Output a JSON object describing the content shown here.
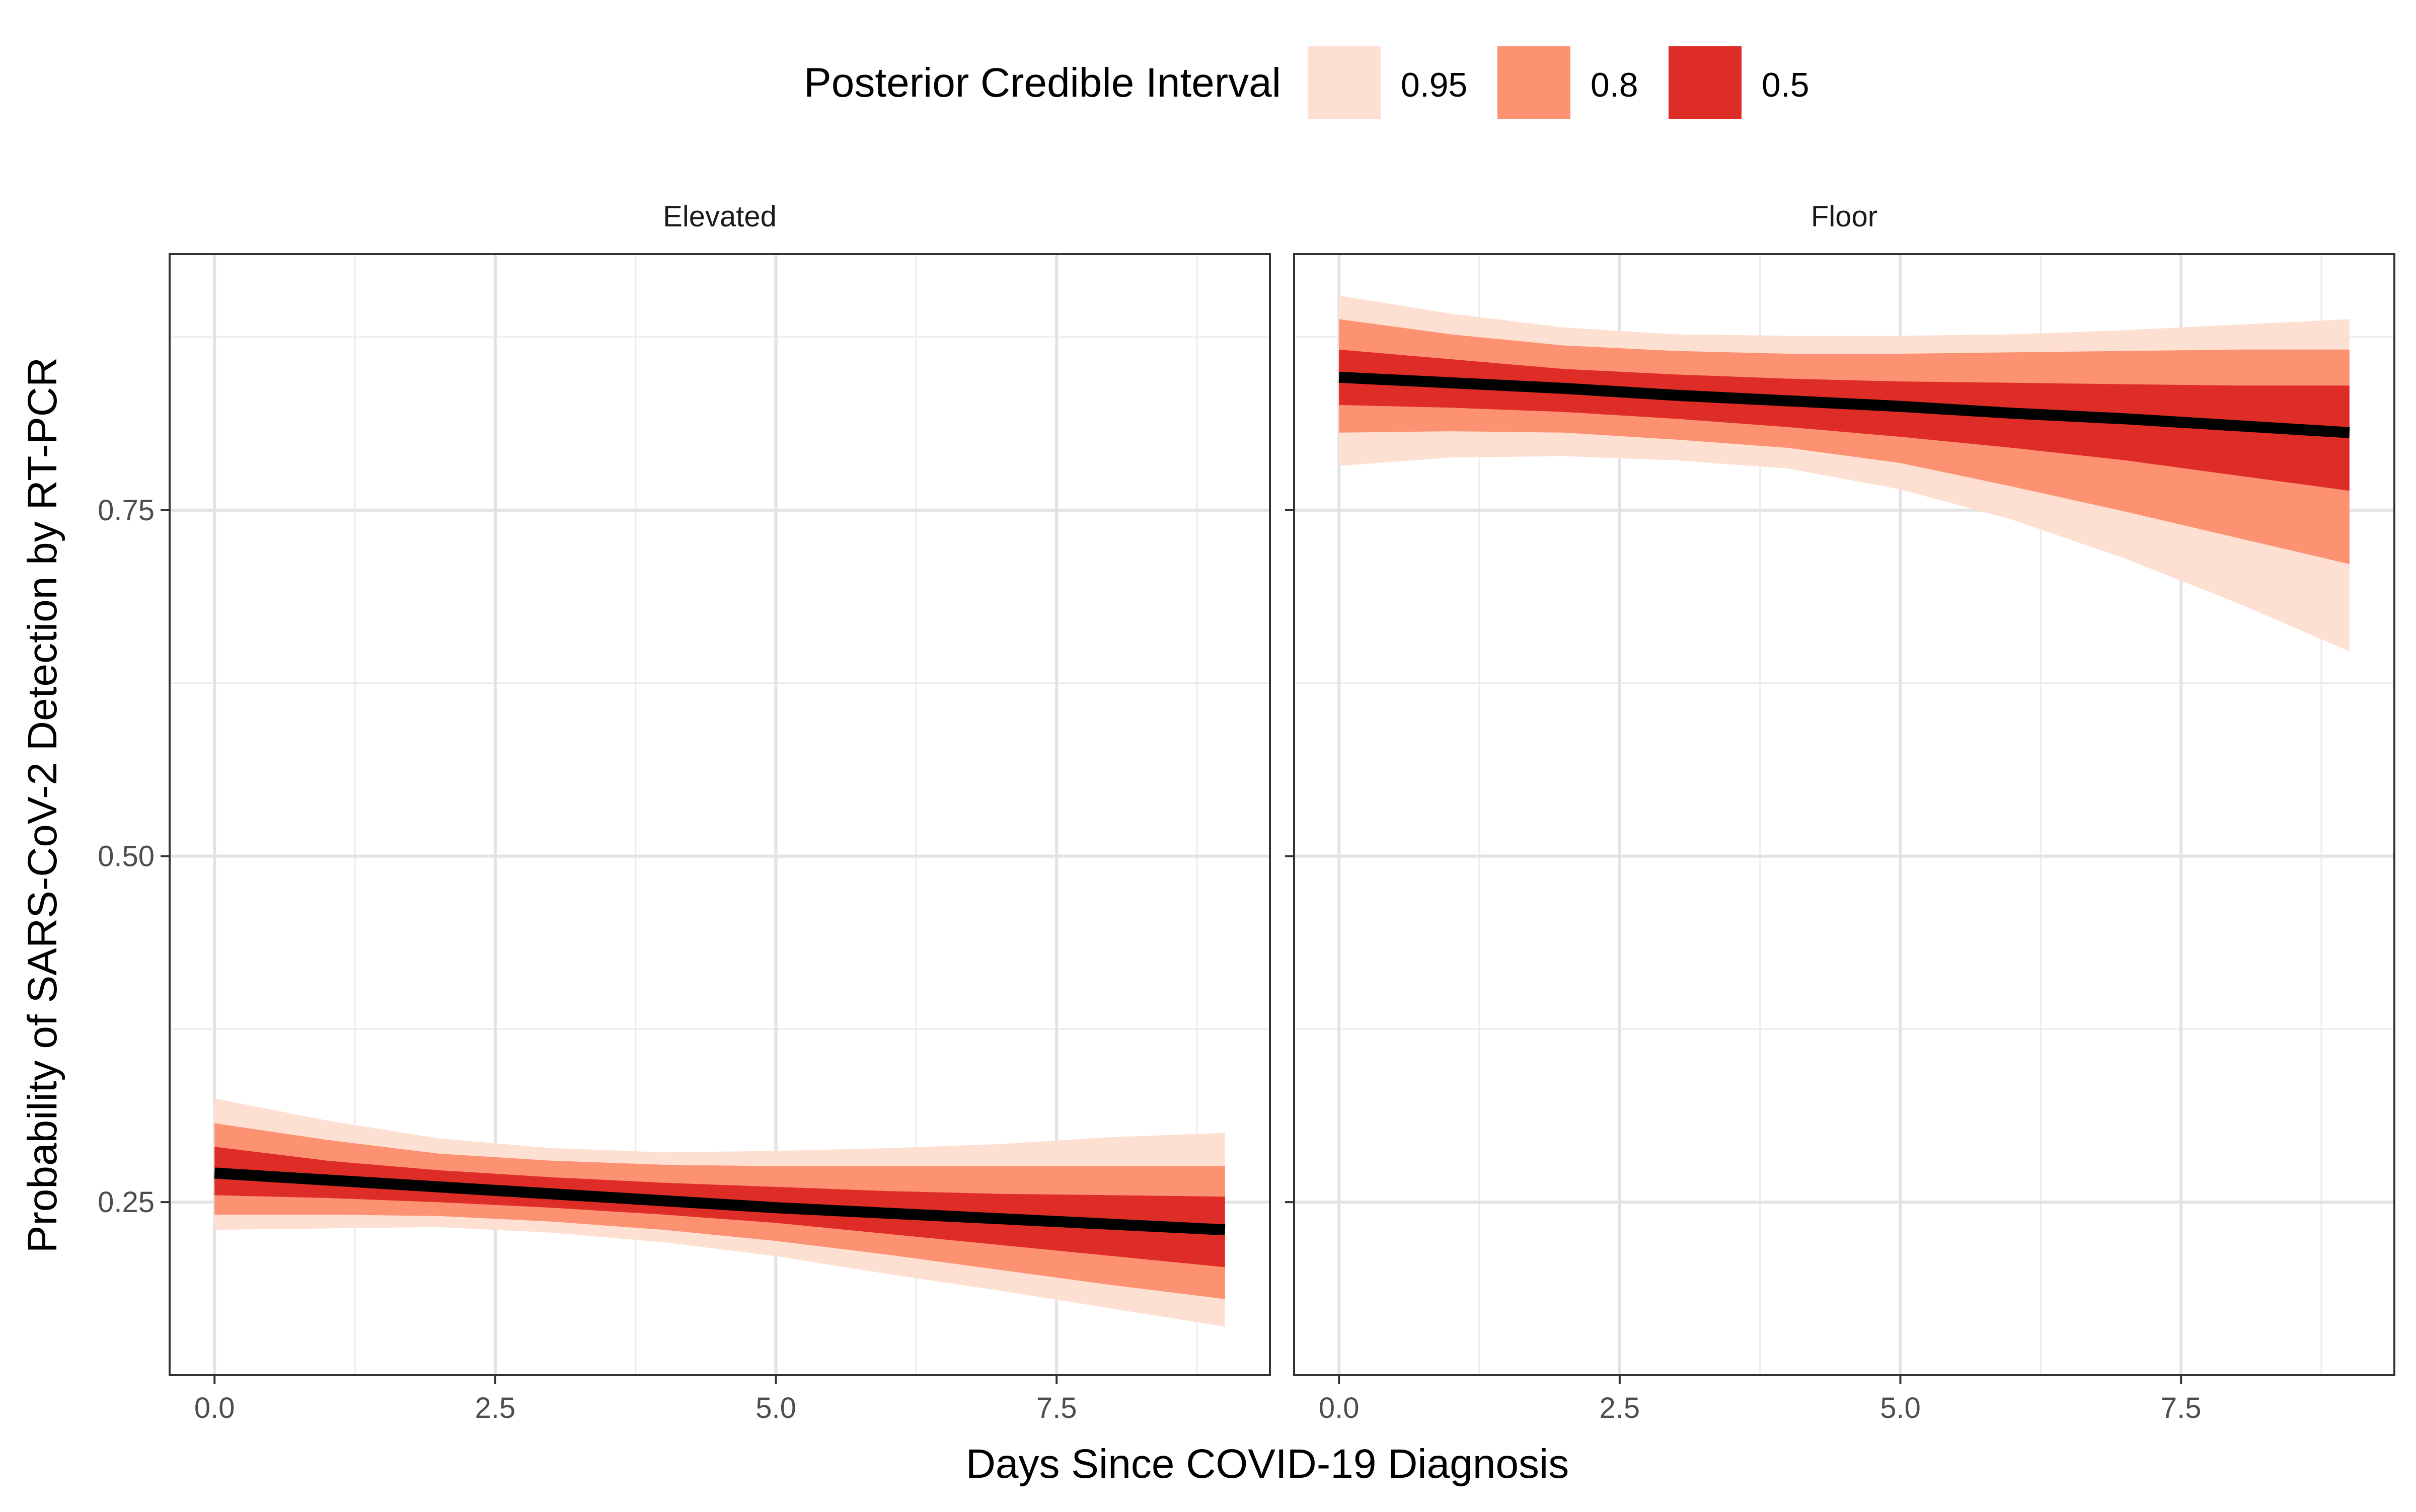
{
  "chart_data": {
    "type": "area",
    "xlabel": "Days Since COVID-19 Diagnosis",
    "ylabel": "Probability of SARS-CoV-2 Detection by RT-PCR",
    "xlim": [
      -0.4,
      9.4
    ],
    "ylim": [
      0.125,
      0.935
    ],
    "x_ticks": [
      0.0,
      2.5,
      5.0,
      7.5
    ],
    "x_tick_labels": [
      "0.0",
      "2.5",
      "5.0",
      "7.5"
    ],
    "x_minor_ticks": [
      1.25,
      3.75,
      6.25,
      8.75
    ],
    "y_ticks": [
      0.25,
      0.5,
      0.75
    ],
    "y_tick_labels": [
      "0.25",
      "0.50",
      "0.75"
    ],
    "y_minor_ticks": [
      0.375,
      0.625,
      0.875
    ],
    "grid": true,
    "legend": {
      "title": "Posterior Credible Interval",
      "position": "top",
      "items": [
        {
          "label": "0.95",
          "color": "#FEE0D2"
        },
        {
          "label": "0.8",
          "color": "#FC9272"
        },
        {
          "label": "0.5",
          "color": "#DE2D26"
        }
      ]
    },
    "line_color": "#000000",
    "panels": [
      {
        "title": "Elevated",
        "x": [
          0,
          1,
          2,
          3,
          4,
          5,
          6,
          7,
          8,
          9
        ],
        "median": [
          0.271,
          0.266,
          0.261,
          0.256,
          0.251,
          0.246,
          0.242,
          0.238,
          0.234,
          0.23
        ],
        "bands": [
          {
            "level": "0.95",
            "lower": [
              0.23,
              0.231,
              0.232,
              0.228,
              0.221,
              0.211,
              0.198,
              0.186,
              0.173,
              0.16
            ],
            "upper": [
              0.325,
              0.309,
              0.296,
              0.289,
              0.286,
              0.287,
              0.289,
              0.292,
              0.297,
              0.3
            ]
          },
          {
            "level": "0.8",
            "lower": [
              0.241,
              0.241,
              0.24,
              0.236,
              0.23,
              0.222,
              0.212,
              0.201,
              0.19,
              0.18
            ],
            "upper": [
              0.307,
              0.295,
              0.285,
              0.28,
              0.277,
              0.276,
              0.276,
              0.276,
              0.276,
              0.276
            ]
          },
          {
            "level": "0.5",
            "lower": [
              0.255,
              0.253,
              0.25,
              0.246,
              0.241,
              0.235,
              0.227,
              0.219,
              0.211,
              0.203
            ],
            "upper": [
              0.29,
              0.28,
              0.273,
              0.268,
              0.264,
              0.261,
              0.258,
              0.256,
              0.255,
              0.254
            ]
          }
        ]
      },
      {
        "title": "Floor",
        "x": [
          0,
          1,
          2,
          3,
          4,
          5,
          6,
          7,
          8,
          9
        ],
        "median": [
          0.846,
          0.842,
          0.838,
          0.833,
          0.829,
          0.825,
          0.82,
          0.816,
          0.811,
          0.806
        ],
        "bands": [
          {
            "level": "0.95",
            "lower": [
              0.782,
              0.788,
              0.789,
              0.786,
              0.78,
              0.765,
              0.743,
              0.715,
              0.683,
              0.648
            ],
            "upper": [
              0.905,
              0.892,
              0.882,
              0.877,
              0.876,
              0.876,
              0.877,
              0.88,
              0.884,
              0.888
            ]
          },
          {
            "level": "0.8",
            "lower": [
              0.806,
              0.807,
              0.806,
              0.801,
              0.795,
              0.784,
              0.767,
              0.749,
              0.73,
              0.711
            ],
            "upper": [
              0.888,
              0.877,
              0.869,
              0.865,
              0.863,
              0.863,
              0.864,
              0.865,
              0.866,
              0.866
            ]
          },
          {
            "level": "0.5",
            "lower": [
              0.826,
              0.824,
              0.821,
              0.816,
              0.81,
              0.803,
              0.795,
              0.786,
              0.775,
              0.764
            ],
            "upper": [
              0.866,
              0.859,
              0.852,
              0.848,
              0.845,
              0.843,
              0.842,
              0.841,
              0.84,
              0.84
            ]
          }
        ]
      }
    ]
  }
}
